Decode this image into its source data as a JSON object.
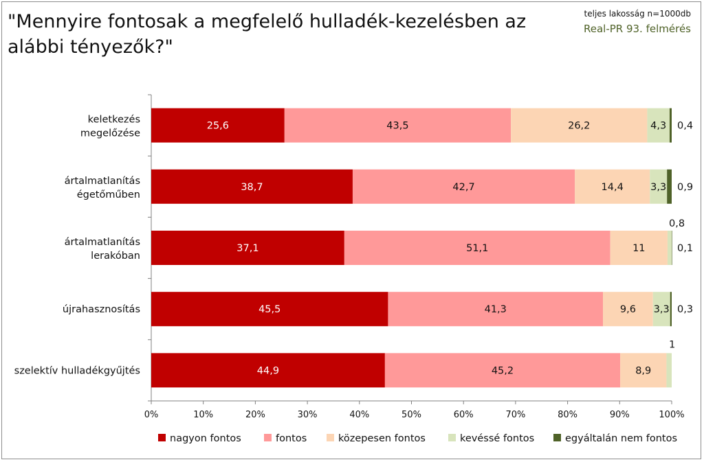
{
  "header": {
    "title": "\"Mennyire fontosak a megfelelő hulladék-kezelésben az alábbi tényezők?\"",
    "sample_note": "teljes lakosság n=1000db",
    "source_note": "Real-PR 93. felmérés"
  },
  "chart_data": {
    "type": "bar",
    "orientation": "horizontal",
    "stacked": "percent",
    "title": "\"Mennyire fontosak a megfelelő hulladék-kezelésben az alábbi tényezők?\"",
    "categories": [
      "keletkezés megelőzése",
      "ártalmatlanítás égetőműben",
      "ártalmatlanítás lerakóban",
      "újrahasznosítás",
      "szelektív hulladékgyűjtés"
    ],
    "series": [
      {
        "name": "nagyon fontos",
        "color": "#c00000",
        "values": [
          25.6,
          38.7,
          37.1,
          45.5,
          44.9
        ]
      },
      {
        "name": "fontos",
        "color": "#ff9999",
        "values": [
          43.5,
          42.7,
          51.1,
          41.3,
          45.2
        ]
      },
      {
        "name": "közepesen fontos",
        "color": "#fcd5b4",
        "values": [
          26.2,
          14.4,
          11,
          9.6,
          8.9
        ]
      },
      {
        "name": "kevéssé fontos",
        "color": "#d8e4bc",
        "values": [
          4.3,
          3.3,
          0.8,
          3.3,
          1
        ]
      },
      {
        "name": "egyáltalán nem fontos",
        "color": "#4f6228",
        "values": [
          0.4,
          0.9,
          0.1,
          0.3,
          null
        ]
      }
    ],
    "data_labels": [
      [
        "25,6",
        "43,5",
        "26,2",
        "4,3",
        "0,4"
      ],
      [
        "38,7",
        "42,7",
        "14,4",
        "3,3",
        "0,9"
      ],
      [
        "37,1",
        "51,1",
        "11",
        "0,8",
        "0,1"
      ],
      [
        "45,5",
        "41,3",
        "9,6",
        "3,3",
        "0,3"
      ],
      [
        "44,9",
        "45,2",
        "8,9",
        "1",
        ""
      ]
    ],
    "x_ticks": [
      "0%",
      "10%",
      "20%",
      "30%",
      "40%",
      "50%",
      "60%",
      "70%",
      "80%",
      "90%",
      "100%"
    ],
    "xlim": [
      0,
      100
    ],
    "grid": false,
    "legend_position": "bottom"
  }
}
